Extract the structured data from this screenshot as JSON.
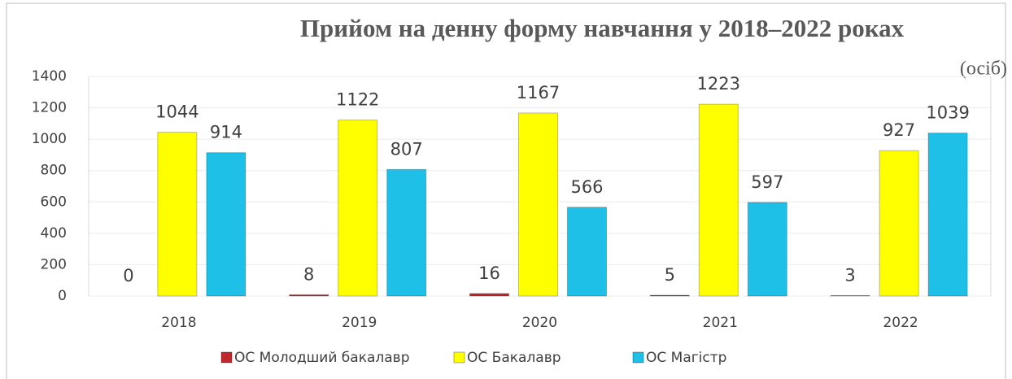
{
  "chart_data": {
    "type": "bar",
    "title": "Прийом на денну форму навчання у 2018–2022 роках",
    "unit_label": "(осіб)",
    "categories": [
      "2018",
      "2019",
      "2020",
      "2021",
      "2022"
    ],
    "series": [
      {
        "name": "ОС Молодший бакалавр",
        "color": "#c0282d",
        "values": [
          0,
          8,
          16,
          5,
          3
        ]
      },
      {
        "name": "ОС Бакалавр",
        "color": "#ffff00",
        "values": [
          1044,
          1122,
          1167,
          1223,
          927
        ]
      },
      {
        "name": "ОС Магістр",
        "color": "#1ec0e8",
        "values": [
          914,
          807,
          566,
          597,
          1039
        ]
      }
    ],
    "ylim": [
      0,
      1400
    ],
    "yticks": [
      0,
      200,
      400,
      600,
      800,
      1000,
      1200,
      1400
    ],
    "grid": true,
    "legend": "bottom"
  }
}
